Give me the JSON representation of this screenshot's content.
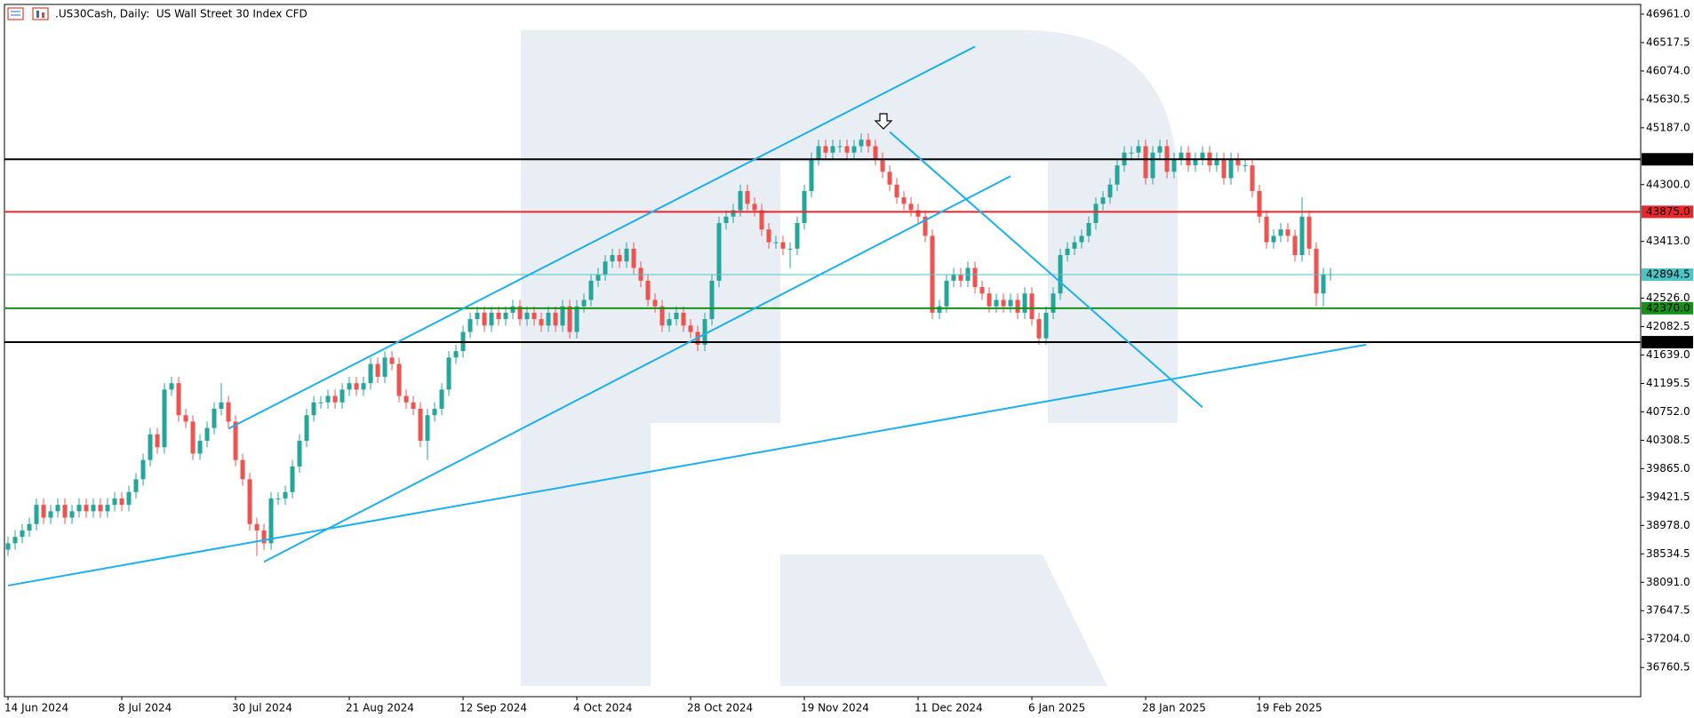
{
  "chart_data": {
    "type": "candlestick",
    "title": ".US30Cash, Daily:  US Wall Street 30 Index CFD",
    "up_color": "#26a69a",
    "down_color": "#ef5350",
    "trendline_color": "#1ab0f0",
    "open": [
      38600,
      38700,
      38800,
      38900,
      39000,
      39300,
      39100,
      39200,
      39300,
      39100,
      39200,
      39300,
      39200,
      39300,
      39200,
      39300,
      39400,
      39300,
      39500,
      39700,
      40000,
      40400,
      40200,
      41100,
      41200,
      40700,
      40600,
      40100,
      40300,
      40500,
      40800,
      40900,
      40600,
      40000,
      39700,
      39000,
      38900,
      38700,
      39400,
      39400,
      39500,
      39900,
      40300,
      40700,
      40900,
      40900,
      41000,
      40900,
      41100,
      41200,
      41100,
      41200,
      41500,
      41300,
      41600,
      41500,
      41000,
      40900,
      40800,
      40300,
      40700,
      40800,
      41100,
      41600,
      41700,
      42000,
      42200,
      42300,
      42100,
      42300,
      42200,
      42300,
      42400,
      42200,
      42300,
      42200,
      42100,
      42300,
      42100,
      42400,
      42000,
      42400,
      42500,
      42800,
      42900,
      43100,
      43200,
      43100,
      43300,
      43000,
      42800,
      42500,
      42400,
      42100,
      42200,
      42300,
      42100,
      42000,
      41800,
      42200,
      42800,
      43700,
      43800,
      43900,
      44200,
      44000,
      43900,
      43600,
      43400,
      43400,
      43300,
      43300,
      43700,
      44200,
      44700,
      44900,
      44800,
      44900,
      44900,
      44800,
      44900,
      45000,
      44900,
      44700,
      44500,
      44300,
      44100,
      44000,
      43900,
      43800,
      43500,
      42300,
      42400,
      42800,
      42900,
      42800,
      43000,
      42700,
      42600,
      42400,
      42500,
      42400,
      42500,
      42300,
      42600,
      42200,
      41900,
      42300,
      42600,
      43200,
      43300,
      43400,
      43500,
      43700,
      44000,
      44100,
      44300,
      44600,
      44800,
      44800,
      44900,
      44400,
      44800,
      44900,
      44500,
      44700,
      44800,
      44600,
      44700,
      44800,
      44600,
      44700,
      44400,
      44700,
      44600,
      44600,
      44200,
      43800,
      43400,
      43500,
      43600,
      43500,
      43200,
      43800,
      43300,
      42600,
      42900
    ],
    "high": [
      38800,
      38900,
      39000,
      39100,
      39400,
      39400,
      39300,
      39400,
      39400,
      39300,
      39400,
      39400,
      39400,
      39400,
      39400,
      39500,
      39500,
      39600,
      39800,
      40100,
      40500,
      40500,
      41200,
      41300,
      41300,
      40800,
      40700,
      40400,
      40600,
      40900,
      41200,
      41000,
      40700,
      40100,
      39800,
      39100,
      39000,
      39500,
      39500,
      39600,
      40000,
      40400,
      40800,
      41000,
      41000,
      41100,
      41100,
      41200,
      41300,
      41300,
      41300,
      41600,
      41600,
      41700,
      41700,
      41600,
      41100,
      41000,
      40900,
      40800,
      40900,
      41200,
      41700,
      41800,
      42100,
      42300,
      42400,
      42400,
      42400,
      42400,
      42400,
      42500,
      42500,
      42400,
      42400,
      42300,
      42400,
      42400,
      42500,
      42500,
      42500,
      42600,
      42900,
      43000,
      43200,
      43300,
      43300,
      43400,
      43400,
      43100,
      42900,
      42600,
      42500,
      42300,
      42400,
      42400,
      42200,
      42100,
      42300,
      42900,
      43800,
      43900,
      44000,
      44300,
      44300,
      44100,
      44000,
      43700,
      43500,
      43500,
      43400,
      43800,
      44300,
      44800,
      45000,
      45000,
      45000,
      45000,
      45000,
      45000,
      45100,
      45100,
      45000,
      44800,
      44600,
      44400,
      44200,
      44100,
      44000,
      43900,
      43600,
      42500,
      42900,
      43000,
      43000,
      43100,
      43100,
      42800,
      42700,
      42600,
      42600,
      42600,
      42600,
      42700,
      42700,
      42300,
      42400,
      42700,
      43300,
      43400,
      43500,
      43600,
      43800,
      44100,
      44200,
      44400,
      44700,
      44900,
      44900,
      45000,
      45000,
      44900,
      45000,
      45000,
      44800,
      44900,
      44900,
      44800,
      44900,
      44900,
      44800,
      44800,
      44800,
      44800,
      44700,
      44700,
      44300,
      43900,
      43600,
      43700,
      43700,
      43600,
      44100,
      43900,
      43400,
      43000,
      43000
    ],
    "low": [
      38500,
      38600,
      38700,
      38800,
      38900,
      39000,
      39000,
      39100,
      39000,
      39000,
      39100,
      39100,
      39100,
      39100,
      39100,
      39200,
      39200,
      39200,
      39400,
      39600,
      39900,
      40100,
      40100,
      41000,
      40600,
      40500,
      40000,
      40000,
      40200,
      40400,
      40700,
      40500,
      39900,
      39600,
      38900,
      38500,
      38600,
      38600,
      39300,
      39300,
      39400,
      39800,
      40200,
      40600,
      40800,
      40800,
      40800,
      40800,
      41000,
      41000,
      41000,
      41100,
      41200,
      41200,
      41400,
      40900,
      40800,
      40700,
      40200,
      40000,
      40600,
      40700,
      41000,
      41500,
      41600,
      41900,
      42100,
      42000,
      42000,
      42100,
      42100,
      42200,
      42100,
      42100,
      42100,
      42000,
      42000,
      42000,
      42000,
      41900,
      41900,
      42300,
      42400,
      42700,
      42800,
      43000,
      43000,
      43000,
      42900,
      42700,
      42400,
      42300,
      42000,
      42000,
      42100,
      42000,
      41900,
      41700,
      41700,
      42100,
      42700,
      43600,
      43700,
      43800,
      43900,
      43800,
      43500,
      43300,
      43300,
      43200,
      43000,
      43200,
      43600,
      44100,
      44600,
      44700,
      44700,
      44800,
      44700,
      44700,
      44800,
      44800,
      44600,
      44400,
      44200,
      44000,
      43900,
      43800,
      43700,
      43400,
      42200,
      42200,
      42300,
      42700,
      42700,
      42700,
      42600,
      42500,
      42300,
      42300,
      42300,
      42300,
      42200,
      42200,
      42100,
      41800,
      41800,
      42200,
      42500,
      43100,
      43200,
      43300,
      43400,
      43600,
      43900,
      44000,
      44200,
      44500,
      44700,
      44700,
      44300,
      44300,
      44700,
      44400,
      44400,
      44600,
      44500,
      44500,
      44600,
      44500,
      44500,
      44300,
      44300,
      44500,
      44500,
      44100,
      43700,
      43300,
      43300,
      43400,
      43400,
      43100,
      43100,
      43200,
      42400,
      42400,
      42800
    ],
    "close": [
      38700,
      38800,
      38900,
      39000,
      39300,
      39100,
      39200,
      39300,
      39100,
      39200,
      39300,
      39200,
      39300,
      39200,
      39300,
      39400,
      39300,
      39500,
      39700,
      40000,
      40400,
      40200,
      41100,
      41200,
      40700,
      40600,
      40100,
      40300,
      40500,
      40800,
      40900,
      40600,
      40000,
      39700,
      39000,
      38900,
      38700,
      39400,
      39400,
      39500,
      39900,
      40300,
      40700,
      40900,
      40900,
      41000,
      40900,
      41100,
      41200,
      41100,
      41200,
      41500,
      41300,
      41600,
      41500,
      41000,
      40900,
      40800,
      40300,
      40700,
      40800,
      41100,
      41600,
      41700,
      42000,
      42200,
      42300,
      42100,
      42300,
      42200,
      42300,
      42400,
      42200,
      42300,
      42200,
      42100,
      42300,
      42100,
      42400,
      42000,
      42400,
      42500,
      42800,
      42900,
      43100,
      43200,
      43100,
      43300,
      43000,
      42800,
      42500,
      42400,
      42100,
      42200,
      42300,
      42100,
      42000,
      41800,
      42200,
      42800,
      43700,
      43800,
      43900,
      44200,
      44000,
      43900,
      43600,
      43400,
      43400,
      43300,
      43300,
      43700,
      44200,
      44700,
      44900,
      44800,
      44900,
      44900,
      44800,
      44900,
      45000,
      44900,
      44700,
      44500,
      44300,
      44100,
      44000,
      43900,
      43800,
      43500,
      42300,
      42400,
      42800,
      42900,
      42800,
      43000,
      42700,
      42600,
      42400,
      42500,
      42400,
      42500,
      42300,
      42600,
      42200,
      41900,
      42300,
      42600,
      43200,
      43300,
      43400,
      43500,
      43700,
      44000,
      44100,
      44300,
      44600,
      44800,
      44800,
      44900,
      44400,
      44800,
      44900,
      44500,
      44700,
      44800,
      44600,
      44700,
      44800,
      44600,
      44700,
      44400,
      44700,
      44600,
      44600,
      44200,
      43800,
      43400,
      43500,
      43600,
      43500,
      43200,
      43800,
      43300,
      42600,
      42900,
      42900
    ],
    "ylim": [
      36305,
      47113
    ],
    "yticks": [
      {
        "value": 46961,
        "label": "46961.0"
      },
      {
        "value": 46517.5,
        "label": "46517.5"
      },
      {
        "value": 46074,
        "label": "46074.0"
      },
      {
        "value": 45630.5,
        "label": "45630.5"
      },
      {
        "value": 45187,
        "label": "45187.0"
      },
      {
        "value": 44300,
        "label": "44300.0"
      },
      {
        "value": 43413,
        "label": "43413.0"
      },
      {
        "value": 42526,
        "label": "42526.0"
      },
      {
        "value": 42082.5,
        "label": "42082.5"
      },
      {
        "value": 41639,
        "label": "41639.0"
      },
      {
        "value": 41195.5,
        "label": "41195.5"
      },
      {
        "value": 40752,
        "label": "40752.0"
      },
      {
        "value": 40308.5,
        "label": "40308.5"
      },
      {
        "value": 39865,
        "label": "39865.0"
      },
      {
        "value": 39421.5,
        "label": "39421.5"
      },
      {
        "value": 38978,
        "label": "38978.0"
      },
      {
        "value": 38534.5,
        "label": "38534.5"
      },
      {
        "value": 38091,
        "label": "38091.0"
      },
      {
        "value": 37647.5,
        "label": "37647.5"
      },
      {
        "value": 37204,
        "label": "37204.0"
      },
      {
        "value": 36760.5,
        "label": "36760.5"
      }
    ],
    "xticks": [
      {
        "value": 0,
        "label": "14 Jun 2024"
      },
      {
        "value": 16,
        "label": "8 Jul 2024"
      },
      {
        "value": 32,
        "label": "30 Jul 2024"
      },
      {
        "value": 48,
        "label": "21 Aug 2024"
      },
      {
        "value": 64,
        "label": "12 Sep 2024"
      },
      {
        "value": 80,
        "label": "4 Oct 2024"
      },
      {
        "value": 96,
        "label": "28 Oct 2024"
      },
      {
        "value": 112,
        "label": "19 Nov 2024"
      },
      {
        "value": 128,
        "label": "11 Dec 2024"
      },
      {
        "value": 144,
        "label": "6 Jan 2025"
      },
      {
        "value": 160,
        "label": "28 Jan 2025"
      },
      {
        "value": 176,
        "label": "19 Feb 2025"
      }
    ],
    "levels": [
      {
        "value": 44695,
        "label": "44695.0",
        "color": "#000000"
      },
      {
        "value": 43875,
        "label": "43875.0",
        "color": "#e8262b"
      },
      {
        "value": 42894.5,
        "label": "42894.5",
        "color": "#4fc3c7"
      },
      {
        "value": 42370,
        "label": "42370.0",
        "color": "#17901a"
      },
      {
        "value": 41840,
        "label": "41840.0",
        "color": "#000000"
      }
    ],
    "trendlines": [
      {
        "x": [
          31,
          136
        ],
        "y": [
          40490,
          46455
        ]
      },
      {
        "x": [
          36,
          141
        ],
        "y": [
          38411,
          44432
        ]
      },
      {
        "x": [
          0,
          191
        ],
        "y": [
          38040,
          41801
        ]
      },
      {
        "x": [
          124,
          168
        ],
        "y": [
          45123,
          40823
        ]
      }
    ]
  }
}
